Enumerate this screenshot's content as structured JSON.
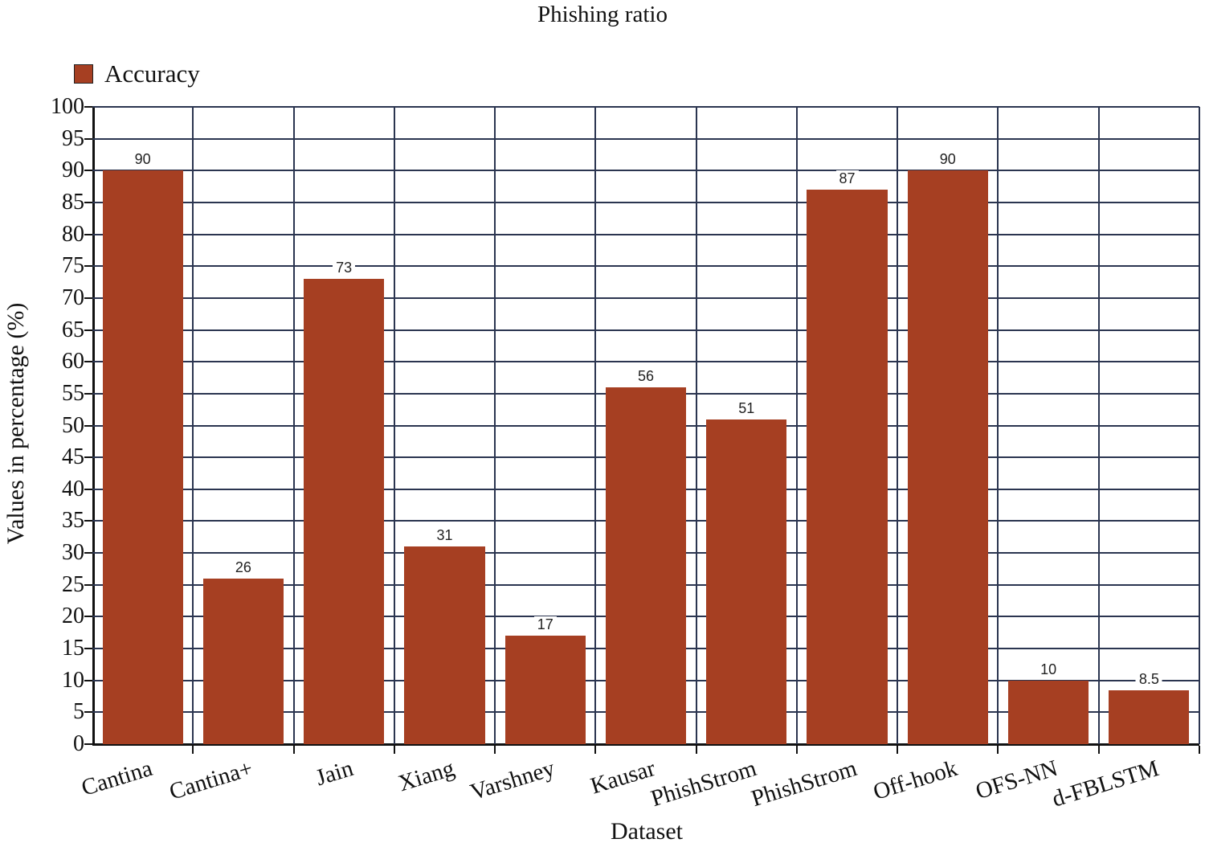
{
  "chart_data": {
    "type": "bar",
    "title": "Phishing ratio",
    "xlabel": "Dataset",
    "ylabel": "Values in percentage (%)",
    "ylim": [
      0,
      100
    ],
    "yticks": [
      0,
      5,
      10,
      15,
      20,
      25,
      30,
      35,
      40,
      45,
      50,
      55,
      60,
      65,
      70,
      75,
      80,
      85,
      90,
      95,
      100
    ],
    "grid": true,
    "legend_position": "top-left",
    "categories": [
      "Cantina",
      "Cantina+",
      "Jain",
      "Xiang",
      "Varshney",
      "Kausar",
      "PhishStrom",
      "PhishStrom",
      "Off-hook",
      "OFS-NN",
      "d-FBLSTM"
    ],
    "series": [
      {
        "name": "Accuracy",
        "color": "#a63f22",
        "values": [
          90,
          26,
          73,
          31,
          17,
          56,
          51,
          87,
          90,
          10,
          8.5
        ]
      }
    ],
    "data_labels": [
      "90",
      "26",
      "73",
      "31",
      "17",
      "56",
      "51",
      "87",
      "90",
      "10",
      "8.5"
    ]
  },
  "legend": {
    "label": "Accuracy"
  },
  "colors": {
    "bar": "#a63f22",
    "grid": "#2b3550",
    "axis": "#111111"
  }
}
